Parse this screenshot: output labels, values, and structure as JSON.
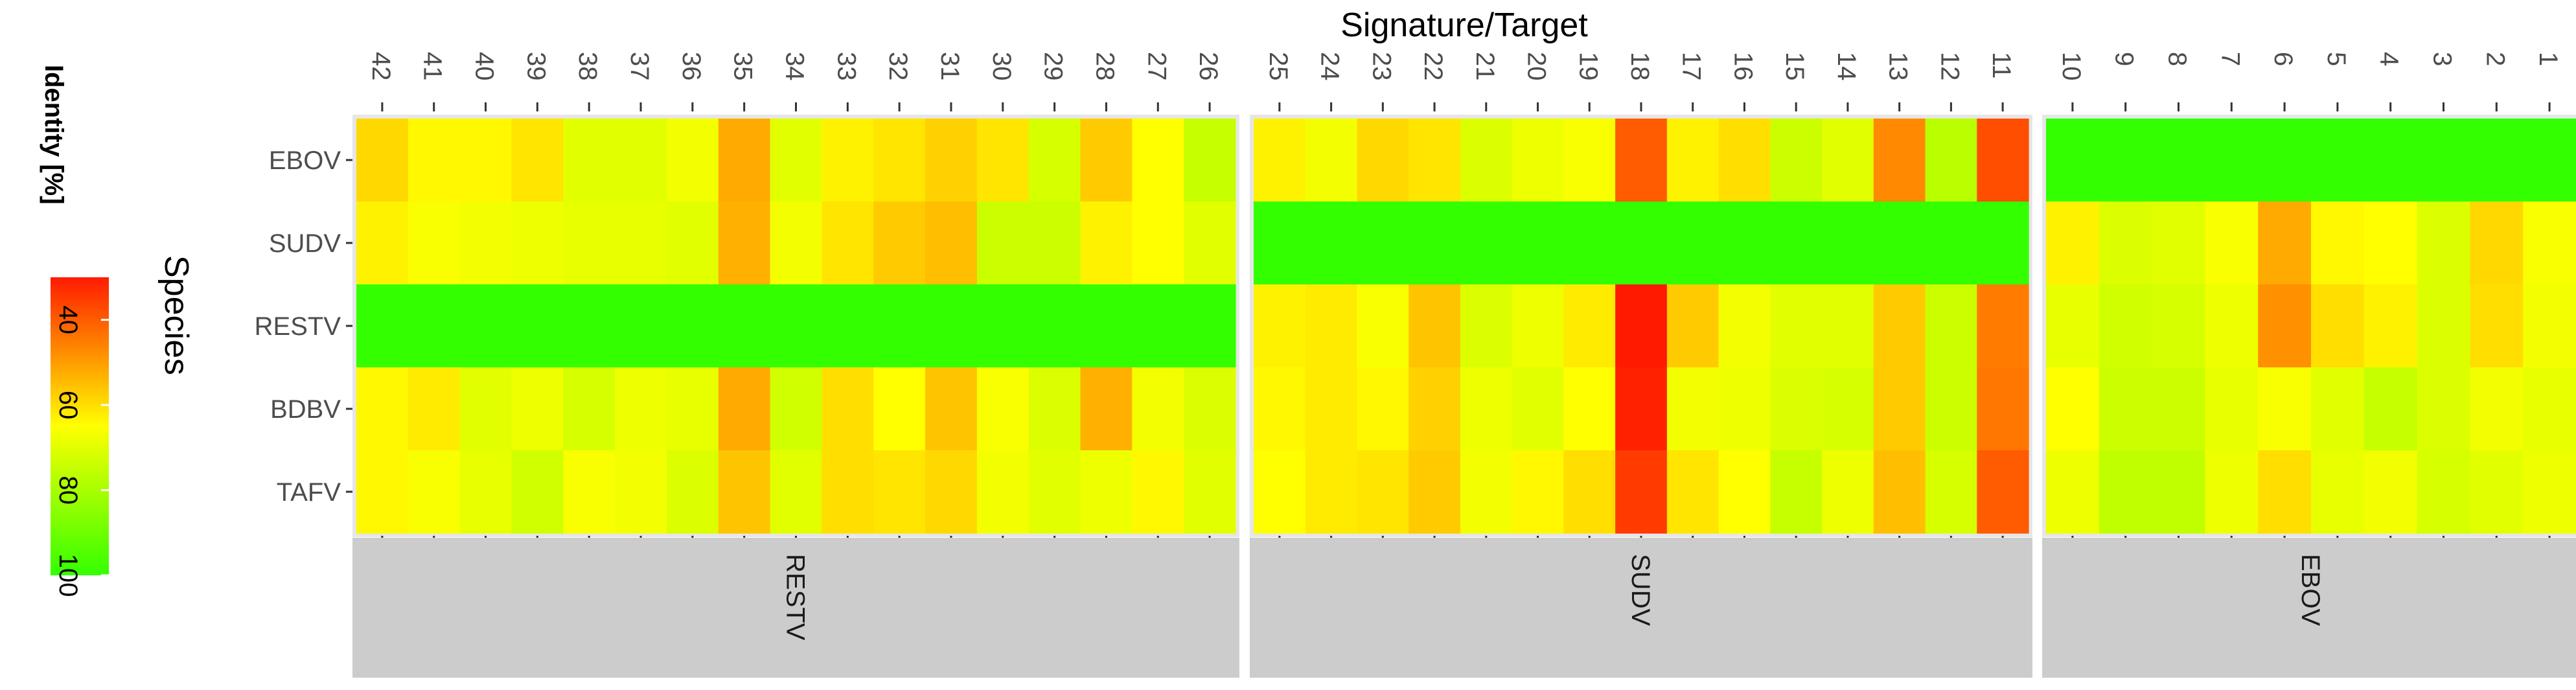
{
  "chart_data": {
    "type": "heatmap",
    "title": "Signature/Target",
    "ylabel": "Species",
    "legend": {
      "title": "Identity [%]",
      "ticks": [
        40,
        60,
        80,
        100
      ],
      "range": [
        30,
        100
      ],
      "placement": "left",
      "colors": {
        "low": "#ff1a00",
        "mid": "#ffff00",
        "high": "#33ff00"
      }
    },
    "species": [
      "EBOV",
      "SUDV",
      "RESTV",
      "BDBV",
      "TAFV"
    ],
    "panels": [
      {
        "label": "RESTV",
        "columns": [
          "42",
          "41",
          "40",
          "39",
          "38",
          "37",
          "36",
          "35",
          "34",
          "33",
          "32",
          "31",
          "30",
          "29",
          "28",
          "27",
          "26"
        ],
        "values": [
          [
            59,
            64,
            64,
            61,
            70,
            70,
            67,
            52,
            70,
            63,
            61,
            58,
            61,
            72,
            57,
            65,
            75
          ],
          [
            63,
            66,
            67,
            68,
            69,
            69,
            70,
            53,
            67,
            61,
            57,
            55,
            74,
            74,
            63,
            65,
            70
          ],
          [
            100,
            100,
            100,
            100,
            100,
            100,
            100,
            100,
            100,
            100,
            100,
            100,
            100,
            100,
            100,
            100,
            100
          ],
          [
            64,
            62,
            70,
            68,
            72,
            68,
            69,
            52,
            73,
            60,
            65,
            56,
            66,
            71,
            53,
            67,
            71
          ],
          [
            64,
            66,
            69,
            73,
            66,
            67,
            71,
            56,
            70,
            60,
            61,
            59,
            67,
            70,
            68,
            64,
            70
          ]
        ]
      },
      {
        "label": "SUDV",
        "columns": [
          "25",
          "24",
          "23",
          "22",
          "21",
          "20",
          "19",
          "18",
          "17",
          "16",
          "15",
          "14",
          "13",
          "12",
          "11"
        ],
        "values": [
          [
            63,
            67,
            59,
            61,
            71,
            68,
            66,
            40,
            63,
            60,
            74,
            70,
            47,
            77,
            38
          ],
          [
            100,
            100,
            100,
            100,
            100,
            100,
            100,
            100,
            100,
            100,
            100,
            100,
            100,
            100,
            100
          ],
          [
            63,
            62,
            66,
            56,
            71,
            68,
            62,
            30,
            57,
            67,
            70,
            70,
            57,
            74,
            45
          ],
          [
            64,
            62,
            64,
            58,
            68,
            70,
            65,
            31,
            67,
            68,
            71,
            72,
            57,
            74,
            44
          ],
          [
            65,
            62,
            61,
            57,
            67,
            64,
            60,
            35,
            61,
            65,
            75,
            68,
            55,
            72,
            40
          ]
        ]
      },
      {
        "label": "EBOV",
        "columns": [
          "10",
          "9",
          "8",
          "7",
          "6",
          "5",
          "4",
          "3",
          "2",
          "1"
        ],
        "values": [
          [
            100,
            100,
            100,
            100,
            100,
            100,
            100,
            100,
            100,
            100
          ],
          [
            63,
            71,
            70,
            66,
            52,
            64,
            65,
            71,
            59,
            66
          ],
          [
            69,
            73,
            72,
            68,
            48,
            60,
            63,
            71,
            60,
            67
          ],
          [
            65,
            74,
            74,
            69,
            66,
            70,
            75,
            71,
            67,
            69
          ],
          [
            68,
            76,
            76,
            68,
            60,
            69,
            67,
            72,
            70,
            68
          ]
        ]
      }
    ]
  }
}
